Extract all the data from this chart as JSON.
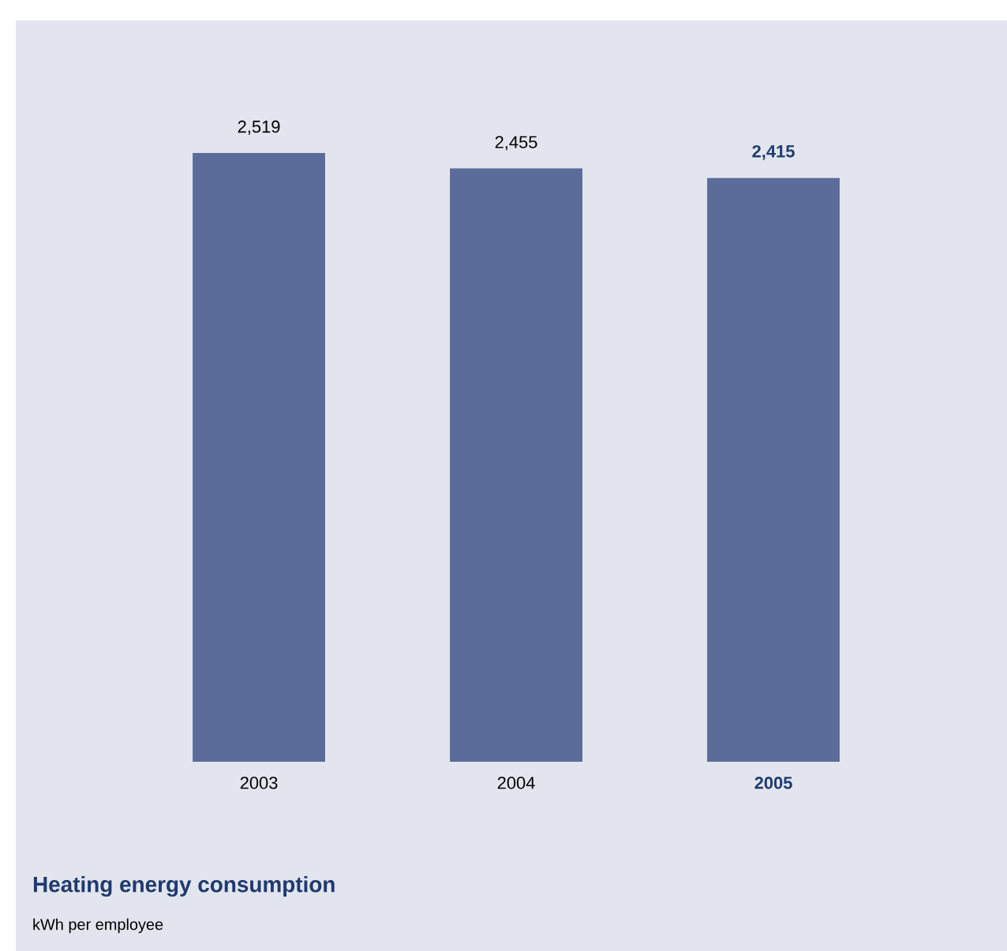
{
  "chart_data": {
    "type": "bar",
    "title": "Heating energy consumption",
    "subtitle": "kWh per employee",
    "categories": [
      "2003",
      "2004",
      "2005"
    ],
    "values": [
      2519,
      2455,
      2415
    ],
    "value_labels": [
      "2,519",
      "2,455",
      "2,415"
    ],
    "color": "#5b6c9a"
  }
}
